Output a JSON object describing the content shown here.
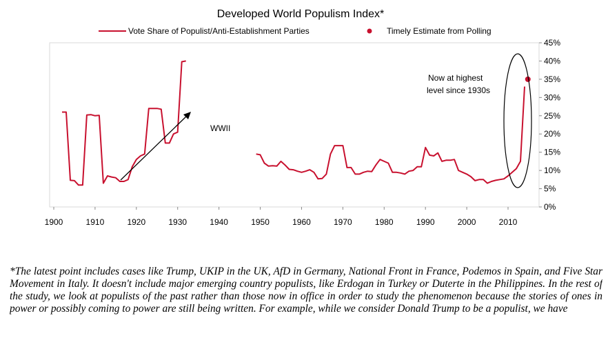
{
  "chart_data": {
    "type": "line",
    "title": "Developed World Populism Index*",
    "xlabel": "",
    "ylabel": "",
    "xlim": [
      1900,
      2020
    ],
    "ylim": [
      0,
      45
    ],
    "x_ticks": [
      "1900",
      "1910",
      "1920",
      "1930",
      "1940",
      "1950",
      "1960",
      "1970",
      "1980",
      "1990",
      "2000",
      "2010"
    ],
    "y_ticks": [
      "0%",
      "5%",
      "10%",
      "15%",
      "20%",
      "25%",
      "30%",
      "35%",
      "40%",
      "45%"
    ],
    "y_tick_values": [
      0,
      5,
      10,
      15,
      20,
      25,
      30,
      35,
      40,
      45
    ],
    "grid": false,
    "legend_position": "top",
    "series": [
      {
        "name": "Vote Share of Populist/Anti-Establishment Parties",
        "color": "#c8102e",
        "segments": [
          [
            [
              1902,
              26
            ],
            [
              1903,
              26
            ],
            [
              1904,
              7.3
            ],
            [
              1905,
              7.2
            ],
            [
              1906,
              6
            ],
            [
              1907,
              6
            ],
            [
              1908,
              25.2
            ],
            [
              1909,
              25.3
            ],
            [
              1910,
              25
            ],
            [
              1911,
              25.1
            ],
            [
              1912,
              6.5
            ],
            [
              1913,
              8.5
            ],
            [
              1914,
              8.2
            ],
            [
              1915,
              8
            ],
            [
              1916,
              7
            ],
            [
              1917,
              7
            ],
            [
              1918,
              7.5
            ],
            [
              1919,
              11
            ],
            [
              1920,
              13
            ],
            [
              1921,
              14
            ],
            [
              1922,
              14.5
            ],
            [
              1923,
              27
            ],
            [
              1924,
              27
            ],
            [
              1925,
              27
            ],
            [
              1926,
              26.8
            ],
            [
              1927,
              17.5
            ],
            [
              1928,
              17.5
            ],
            [
              1929,
              20
            ],
            [
              1930,
              20.5
            ],
            [
              1931,
              39.8
            ],
            [
              1932,
              40
            ]
          ],
          [
            [
              1949,
              14.5
            ],
            [
              1950,
              14.3
            ],
            [
              1951,
              12
            ],
            [
              1952,
              11.2
            ],
            [
              1953,
              11.3
            ],
            [
              1954,
              11.2
            ],
            [
              1955,
              12.5
            ],
            [
              1956,
              11.5
            ],
            [
              1957,
              10.3
            ],
            [
              1958,
              10.2
            ],
            [
              1959,
              9.8
            ],
            [
              1960,
              9.5
            ],
            [
              1961,
              9.8
            ],
            [
              1962,
              10.2
            ],
            [
              1963,
              9.5
            ],
            [
              1964,
              7.7
            ],
            [
              1965,
              7.8
            ],
            [
              1966,
              9
            ],
            [
              1967,
              14.5
            ],
            [
              1968,
              16.8
            ],
            [
              1969,
              16.8
            ],
            [
              1970,
              16.8
            ],
            [
              1971,
              10.8
            ],
            [
              1972,
              10.8
            ],
            [
              1973,
              9
            ],
            [
              1974,
              9
            ],
            [
              1975,
              9.5
            ],
            [
              1976,
              9.8
            ],
            [
              1977,
              9.7
            ],
            [
              1978,
              11.5
            ],
            [
              1979,
              13
            ],
            [
              1980,
              12.5
            ],
            [
              1981,
              12
            ],
            [
              1982,
              9.5
            ],
            [
              1983,
              9.5
            ],
            [
              1984,
              9.3
            ],
            [
              1985,
              9
            ],
            [
              1986,
              9.8
            ],
            [
              1987,
              10
            ],
            [
              1988,
              11
            ],
            [
              1989,
              11
            ],
            [
              1990,
              16.3
            ],
            [
              1991,
              14.2
            ],
            [
              1992,
              14
            ],
            [
              1993,
              14.8
            ],
            [
              1994,
              12.5
            ],
            [
              1995,
              12.8
            ],
            [
              1996,
              12.8
            ],
            [
              1997,
              13
            ],
            [
              1998,
              10
            ],
            [
              1999,
              9.5
            ],
            [
              2000,
              9
            ],
            [
              2001,
              8.3
            ],
            [
              2002,
              7.2
            ],
            [
              2003,
              7.5
            ],
            [
              2004,
              7.5
            ],
            [
              2005,
              6.5
            ],
            [
              2006,
              7
            ],
            [
              2007,
              7.3
            ],
            [
              2008,
              7.5
            ],
            [
              2009,
              7.7
            ],
            [
              2010,
              8.5
            ],
            [
              2011,
              9.5
            ],
            [
              2012,
              10.5
            ],
            [
              2013,
              12.5
            ],
            [
              2014,
              33
            ]
          ]
        ]
      },
      {
        "name": "Timely Estimate from Polling",
        "color": "#c8102e",
        "points": [
          [
            2014.8,
            35
          ]
        ]
      }
    ],
    "annotations": [
      {
        "text": "WWII"
      },
      {
        "lines": [
          "Now at highest",
          "level since 1930s"
        ]
      }
    ]
  },
  "footnote": "*The latest point includes cases like Trump, UKIP in the UK, AfD in Germany, National Front in France, Podemos in Spain, and Five Star Movement in Italy. It doesn't include major emerging country populists, like Erdogan in Turkey or Duterte in the Philippines. In the rest of the study, we look at populists of the past rather than those now in office in order to study the phenomenon because the stories of ones in power or possibly coming to power are still being written.  For example, while we consider Donald Trump to be a populist, we have"
}
